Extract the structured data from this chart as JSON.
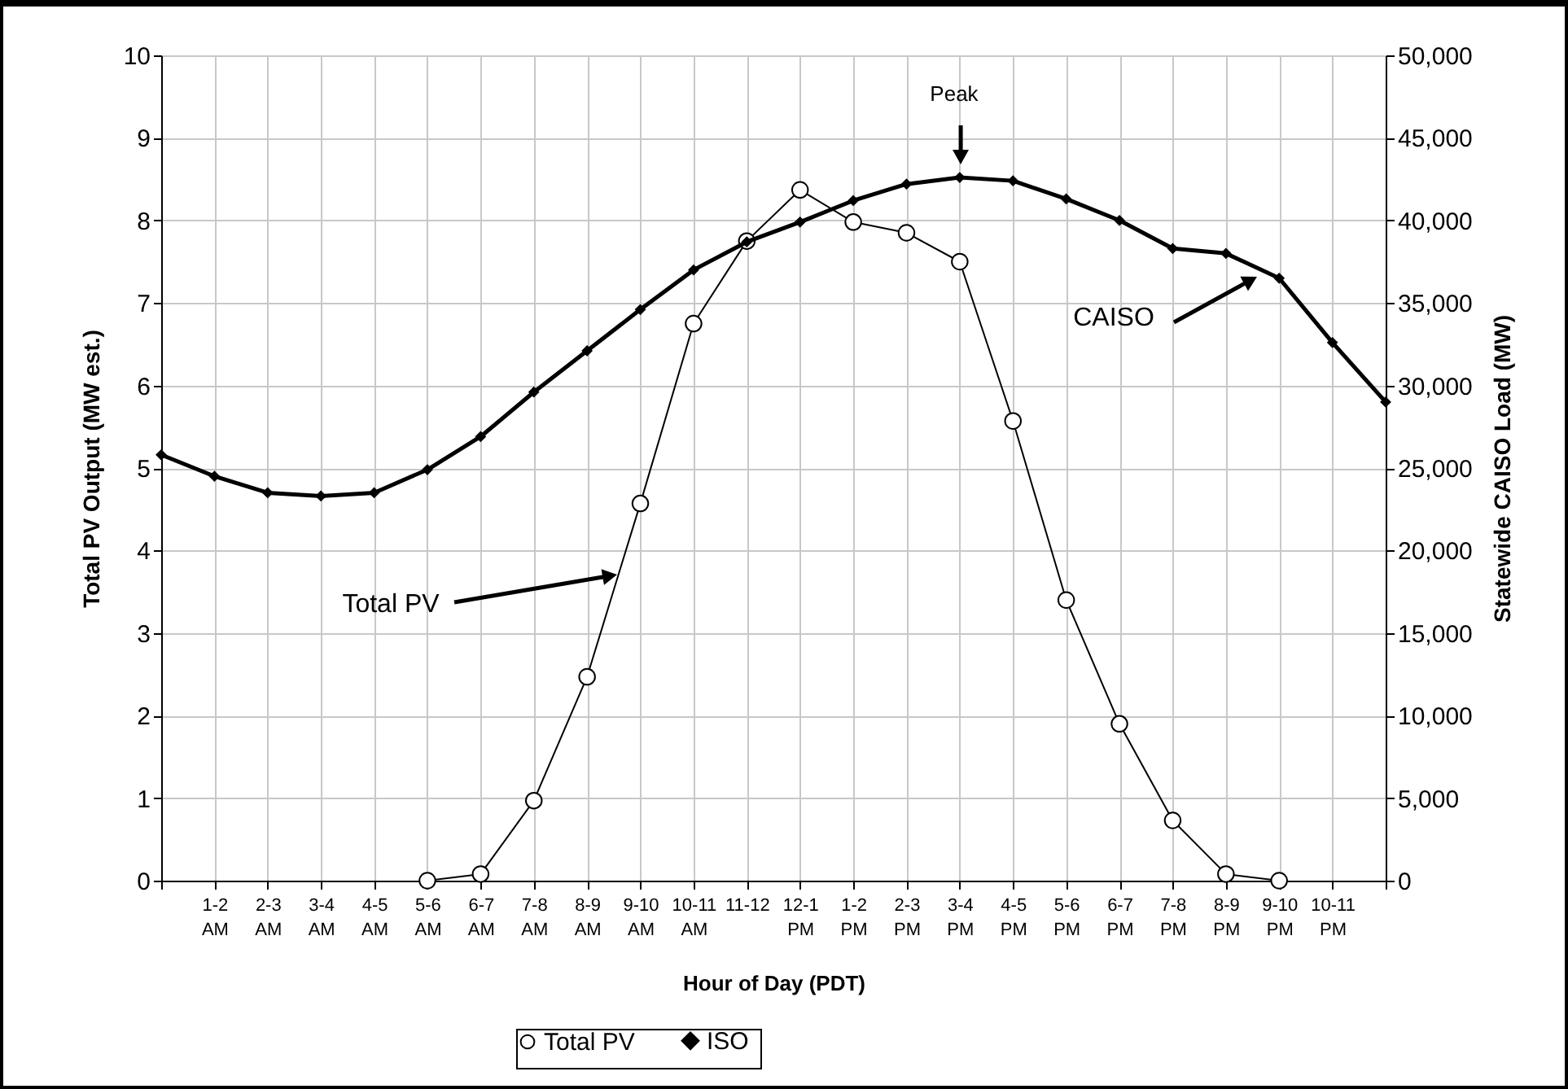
{
  "chart_data": {
    "type": "line",
    "xlabel": "Hour of Day (PDT)",
    "ylabel": "Total PV Output (MW est.)",
    "y2label": "Statewide CAISO Load (MW)",
    "categories": [
      null,
      "1-2 AM",
      "2-3 AM",
      "3-4 AM",
      "4-5 AM",
      "5-6 AM",
      "6-7 AM",
      "7-8 AM",
      "8-9 AM",
      "9-10 AM",
      "10-11 AM",
      "11-12",
      "12-1 PM",
      "1-2 PM",
      "2-3 PM",
      "3-4 PM",
      "4-5 PM",
      "5-6 PM",
      "6-7 PM",
      "7-8 PM",
      "8-9 PM",
      "9-10 PM",
      "10-11 PM",
      null
    ],
    "series": [
      {
        "name": "Total PV",
        "color": "#000000",
        "marker": "circle",
        "values": [
          null,
          null,
          null,
          null,
          null,
          0,
          0.08,
          0.97,
          2.47,
          4.57,
          6.75,
          7.75,
          8.37,
          7.98,
          7.85,
          7.5,
          5.57,
          3.4,
          1.9,
          0.73,
          0.08,
          0,
          null,
          null
        ]
      },
      {
        "name": "ISO",
        "color": "#000000",
        "marker": "diamond",
        "axis": "y2",
        "values": [
          25800,
          24500,
          23500,
          23300,
          23500,
          24900,
          26900,
          29600,
          32100,
          34600,
          37000,
          38700,
          39900,
          41200,
          42200,
          42600,
          42400,
          41300,
          40000,
          38300,
          38000,
          36500,
          32600,
          29000
        ]
      }
    ],
    "ylim": [
      0,
      10
    ],
    "yticks": [
      0,
      1,
      2,
      3,
      4,
      5,
      6,
      7,
      8,
      9,
      10
    ],
    "y2lim": [
      0,
      50000
    ],
    "y2ticks": [
      0,
      {
        "value": 5000,
        "label": "5,000"
      },
      {
        "value": 10000,
        "label": "10,000"
      },
      {
        "value": 15000,
        "label": "15,000"
      },
      {
        "value": 20000,
        "label": "20,000"
      },
      {
        "value": 25000,
        "label": "25,000"
      },
      {
        "value": 30000,
        "label": "30,000"
      },
      {
        "value": 35000,
        "label": "35,000"
      },
      {
        "value": 40000,
        "label": "40,000"
      },
      {
        "value": 45000,
        "label": "45,000"
      },
      {
        "value": 50000,
        "label": "50,000"
      }
    ],
    "annotations": [
      "Peak",
      "CAISO",
      "Total PV"
    ],
    "grid": true,
    "legend": "bottom"
  }
}
